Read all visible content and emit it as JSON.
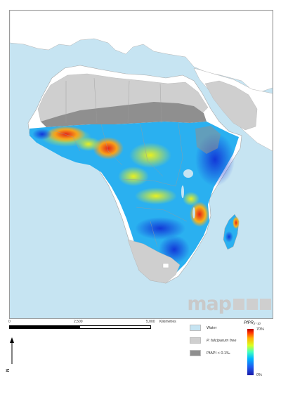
{
  "map": {
    "logo": {
      "text": "map"
    }
  },
  "scale_bar": {
    "ticks": [
      "0",
      "2,500",
      "5,000"
    ],
    "unit": "Kilometres"
  },
  "north_arrow": {
    "label": "N"
  },
  "legend": {
    "items": [
      {
        "label": "Water",
        "color": "#c6e4f2"
      },
      {
        "label": "P. falciparum free",
        "color": "#cfcfcf"
      },
      {
        "label": "PfAPI < 0.1‰",
        "color": "#8f8f8f"
      }
    ],
    "ramp_title": "PfPR₂₋₁₀",
    "ramp_max": "70%",
    "ramp_min": "0%"
  },
  "colors": {
    "water": "#c6e4f2",
    "land_outside": "#ffffff",
    "pf_free": "#cfcfcf",
    "api_low": "#8f8f8f",
    "risk_high": "#e8341a",
    "risk_mid": "#f5e71e",
    "risk_low": "#1f5cf0"
  }
}
